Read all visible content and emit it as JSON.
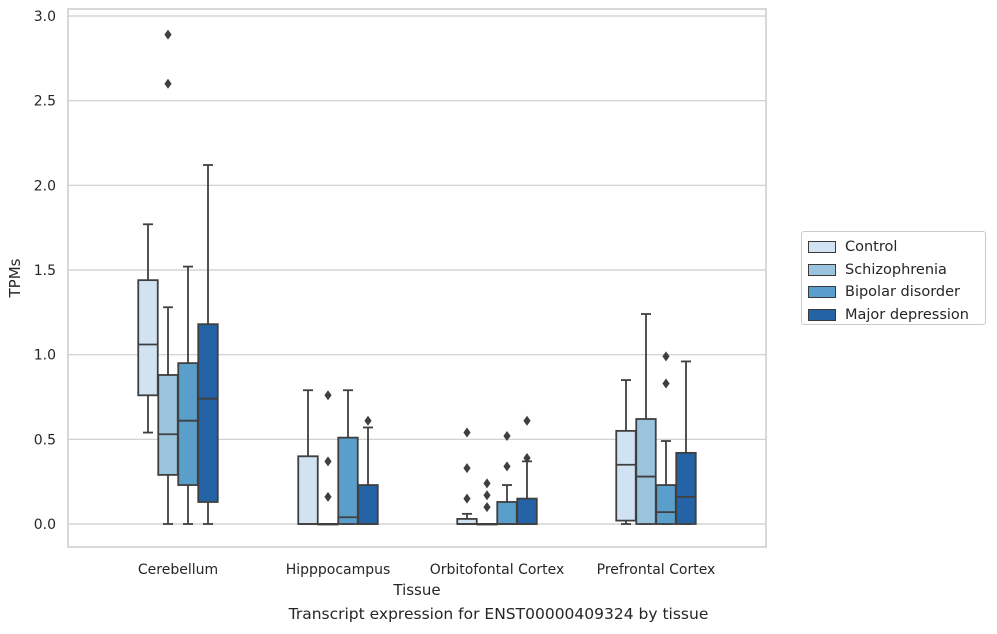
{
  "chart_data": {
    "type": "box",
    "caption": "Transcript expression for ENST00000409324 by tissue",
    "xlabel": "Tissue",
    "ylabel": "TPMs",
    "ylim": [
      -0.14,
      3.05
    ],
    "yticks": [
      0.0,
      0.5,
      1.0,
      1.5,
      2.0,
      2.5,
      3.0
    ],
    "ytick_labels": [
      "0.0",
      "0.5",
      "1.0",
      "1.5",
      "2.0",
      "2.5",
      "3.0"
    ],
    "grid": true,
    "legend_position": "outside-right",
    "categories": [
      "Cerebellum",
      "Hipppocampus",
      "Orbitofontal Cortex",
      "Prefrontal Cortex"
    ],
    "series": [
      {
        "name": "Control",
        "color": "#d1e2f2",
        "boxes": [
          {
            "whisker_low": 0.54,
            "q1": 0.76,
            "median": 1.06,
            "q3": 1.44,
            "whisker_high": 1.77,
            "outliers": []
          },
          {
            "whisker_low": 0.0,
            "q1": 0.0,
            "median": 0.0,
            "q3": 0.4,
            "whisker_high": 0.79,
            "outliers": []
          },
          {
            "whisker_low": 0.0,
            "q1": 0.0,
            "median": 0.0,
            "q3": 0.03,
            "whisker_high": 0.06,
            "outliers": [
              0.15,
              0.33,
              0.54
            ]
          },
          {
            "whisker_low": 0.0,
            "q1": 0.02,
            "median": 0.35,
            "q3": 0.55,
            "whisker_high": 0.85,
            "outliers": []
          }
        ]
      },
      {
        "name": "Schizophrenia",
        "color": "#9ac3dd",
        "boxes": [
          {
            "whisker_low": 0.0,
            "q1": 0.29,
            "median": 0.53,
            "q3": 0.88,
            "whisker_high": 1.28,
            "outliers": [
              2.6,
              2.89
            ]
          },
          {
            "whisker_low": 0.0,
            "q1": 0.0,
            "median": 0.0,
            "q3": 0.0,
            "whisker_high": 0.0,
            "outliers": [
              0.16,
              0.37,
              0.76
            ]
          },
          {
            "whisker_low": 0.0,
            "q1": 0.0,
            "median": 0.0,
            "q3": 0.0,
            "whisker_high": 0.0,
            "outliers": [
              0.1,
              0.17,
              0.24
            ]
          },
          {
            "whisker_low": 0.0,
            "q1": 0.0,
            "median": 0.28,
            "q3": 0.62,
            "whisker_high": 1.24,
            "outliers": []
          }
        ]
      },
      {
        "name": "Bipolar disorder",
        "color": "#5a9fcb",
        "boxes": [
          {
            "whisker_low": 0.0,
            "q1": 0.23,
            "median": 0.61,
            "q3": 0.95,
            "whisker_high": 1.52,
            "outliers": []
          },
          {
            "whisker_low": 0.0,
            "q1": 0.0,
            "median": 0.04,
            "q3": 0.51,
            "whisker_high": 0.79,
            "outliers": []
          },
          {
            "whisker_low": 0.0,
            "q1": 0.0,
            "median": 0.0,
            "q3": 0.13,
            "whisker_high": 0.23,
            "outliers": [
              0.34,
              0.52
            ]
          },
          {
            "whisker_low": 0.0,
            "q1": 0.0,
            "median": 0.07,
            "q3": 0.23,
            "whisker_high": 0.49,
            "outliers": [
              0.83,
              0.99
            ]
          }
        ]
      },
      {
        "name": "Major depression",
        "color": "#2464a6",
        "boxes": [
          {
            "whisker_low": 0.0,
            "q1": 0.13,
            "median": 0.74,
            "q3": 1.18,
            "whisker_high": 2.12,
            "outliers": []
          },
          {
            "whisker_low": 0.0,
            "q1": 0.0,
            "median": 0.0,
            "q3": 0.23,
            "whisker_high": 0.57,
            "outliers": [
              0.61
            ]
          },
          {
            "whisker_low": 0.0,
            "q1": 0.0,
            "median": 0.0,
            "q3": 0.15,
            "whisker_high": 0.37,
            "outliers": [
              0.39,
              0.61
            ]
          },
          {
            "whisker_low": 0.0,
            "q1": 0.0,
            "median": 0.16,
            "q3": 0.42,
            "whisker_high": 0.96,
            "outliers": []
          }
        ]
      }
    ]
  }
}
